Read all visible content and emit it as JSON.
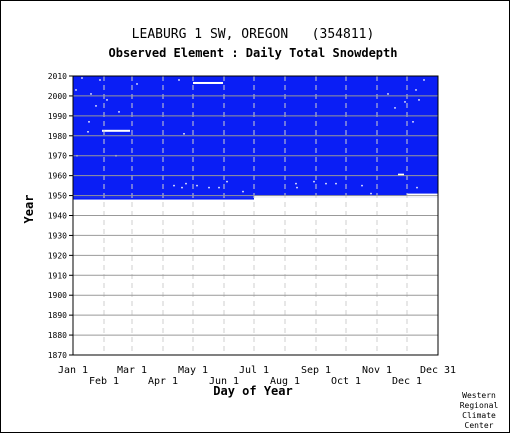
{
  "chart_data": {
    "type": "heatmap",
    "title": "LEABURG 1 SW, OREGON   (354811)",
    "subtitle": "Observed Element : Daily Total Snowdepth",
    "xlabel": "Day of Year",
    "ylabel": "Year",
    "xlim": [
      1,
      366
    ],
    "ylim": [
      1870,
      2010
    ],
    "grid": true,
    "x_ticks_upper": [
      {
        "label": "Jan 1",
        "day": 1
      },
      {
        "label": "Mar 1",
        "day": 60
      },
      {
        "label": "May 1",
        "day": 121
      },
      {
        "label": "Jul 1",
        "day": 182
      },
      {
        "label": "Sep 1",
        "day": 244
      },
      {
        "label": "Nov 1",
        "day": 305
      },
      {
        "label": "Dec 31",
        "day": 366
      }
    ],
    "x_ticks_lower": [
      {
        "label": "Feb 1",
        "day": 32
      },
      {
        "label": "Apr 1",
        "day": 91
      },
      {
        "label": "Jun 1",
        "day": 152
      },
      {
        "label": "Aug 1",
        "day": 213
      },
      {
        "label": "Oct 1",
        "day": 274
      },
      {
        "label": "Dec 1",
        "day": 335
      }
    ],
    "y_ticks": [
      2010,
      2000,
      1990,
      1980,
      1970,
      1960,
      1950,
      1940,
      1930,
      1920,
      1910,
      1900,
      1890,
      1880,
      1870
    ],
    "series": [
      {
        "values": {
          "rows": [
            {
              "y_from": 1948,
              "y_to": 1949,
              "x_from": 1,
              "x_to": 182
            },
            {
              "y_from": 1949,
              "y_to": 2010,
              "x_from": 1,
              "x_to": 366
            }
          ],
          "gaps": [
            {
              "y_from": 1982,
              "y_to": 1983,
              "x_from": 30,
              "x_to": 58
            },
            {
              "y_from": 2006,
              "y_to": 2007,
              "x_from": 121,
              "x_to": 151
            },
            {
              "y_from": 1950,
              "y_to": 1951,
              "x_from": 335,
              "x_to": 366
            },
            {
              "y_from": 1960,
              "y_to": 1961,
              "x_from": 326,
              "x_to": 332
            },
            {
              "y_from": 1949,
              "y_to": 1950,
              "x_from": 182,
              "x_to": 366
            }
          ],
          "gap_points": [
            [
              10,
              2009
            ],
            [
              28,
              2008
            ],
            [
              4,
              2003
            ],
            [
              19,
              2001
            ],
            [
              35,
              1998
            ],
            [
              24,
              1995
            ],
            [
              47,
              1992
            ],
            [
              65,
              2006
            ],
            [
              17,
              1987
            ],
            [
              16,
              1982
            ],
            [
              44,
              1970
            ],
            [
              112,
              1981
            ],
            [
              107,
              2008
            ],
            [
              102,
              1955
            ],
            [
              110,
              1954
            ],
            [
              114,
              1956
            ],
            [
              125,
              1955
            ],
            [
              137,
              1954
            ],
            [
              147,
              1954
            ],
            [
              155,
              1957
            ],
            [
              171,
              1952
            ],
            [
              224,
              1956
            ],
            [
              225,
              1954
            ],
            [
              242,
              1957
            ],
            [
              254,
              1956
            ],
            [
              264,
              1956
            ],
            [
              290,
              1955
            ],
            [
              316,
              2001
            ],
            [
              323,
              1994
            ],
            [
              333,
              1997
            ],
            [
              344,
              2003
            ],
            [
              347,
              1998
            ],
            [
              341,
              1987
            ],
            [
              352,
              2008
            ],
            [
              345,
              1954
            ],
            [
              299,
              1951
            ],
            [
              5,
              1970
            ]
          ]
        }
      }
    ]
  },
  "credit": [
    "Western",
    "Regional",
    "Climate",
    "Center"
  ],
  "colors": {
    "data_fill": "#0a1ef5",
    "gap": "#ffffff",
    "grid": "#999999",
    "axis": "#000000"
  }
}
